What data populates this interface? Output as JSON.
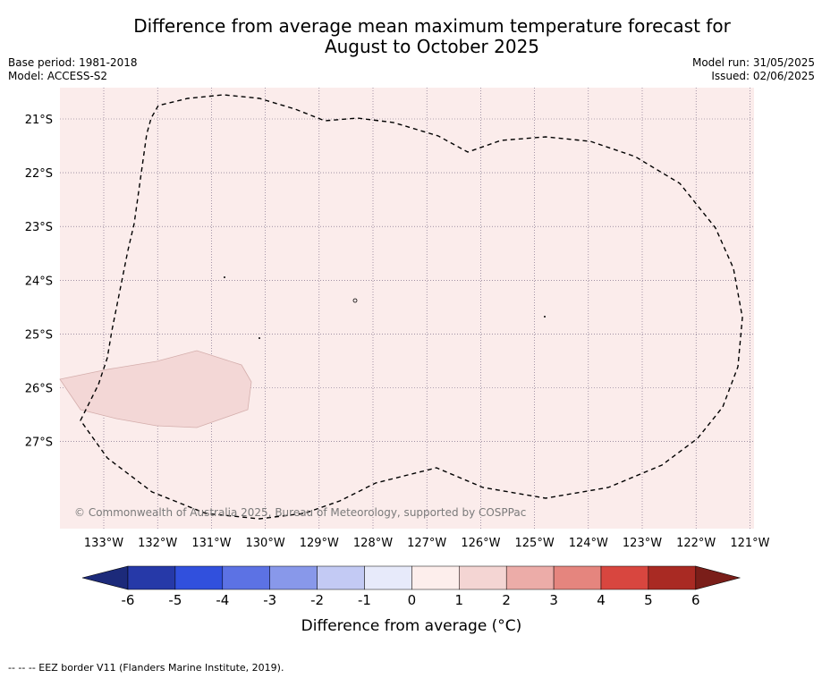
{
  "title_line1": "Difference from average mean maximum temperature forecast for",
  "title_line2": "August to October 2025",
  "base_period": "Base period: 1981-2018",
  "model": "Model: ACCESS-S2",
  "model_run": "Model run: 31/05/2025",
  "issued": "Issued: 02/06/2025",
  "copyright": "© Commonwealth of Australia 2025, Bureau of Meteorology, supported by COSPPac",
  "longitude_labels": [
    "133°W",
    "132°W",
    "131°W",
    "130°W",
    "129°W",
    "128°W",
    "127°W",
    "126°W",
    "125°W",
    "124°W",
    "123°W",
    "122°W",
    "121°W"
  ],
  "latitude_labels": [
    "21°S",
    "22°S",
    "23°S",
    "24°S",
    "25°S",
    "26°S",
    "27°S"
  ],
  "map_fill_color": "#fbeceb",
  "warm_patch_color": "#f3d7d6",
  "colorbar": {
    "label": "Difference from average (°C)",
    "ticks": [
      "-6",
      "-5",
      "-4",
      "-3",
      "-2",
      "-1",
      "0",
      "1",
      "2",
      "3",
      "4",
      "5",
      "6"
    ],
    "colors": [
      "#2639a8",
      "#3150dd",
      "#5c72e4",
      "#8898ea",
      "#c3caf4",
      "#e7eafa",
      "#fdeeec",
      "#f4d5d3",
      "#ecaca8",
      "#e5857e",
      "#d8463f",
      "#a92a23"
    ],
    "low_extend_color": "#1c2a7a",
    "high_extend_color": "#7a1e19"
  },
  "footer": "-- -- -- EEZ border V11 (Flanders Marine Institute, 2019)."
}
